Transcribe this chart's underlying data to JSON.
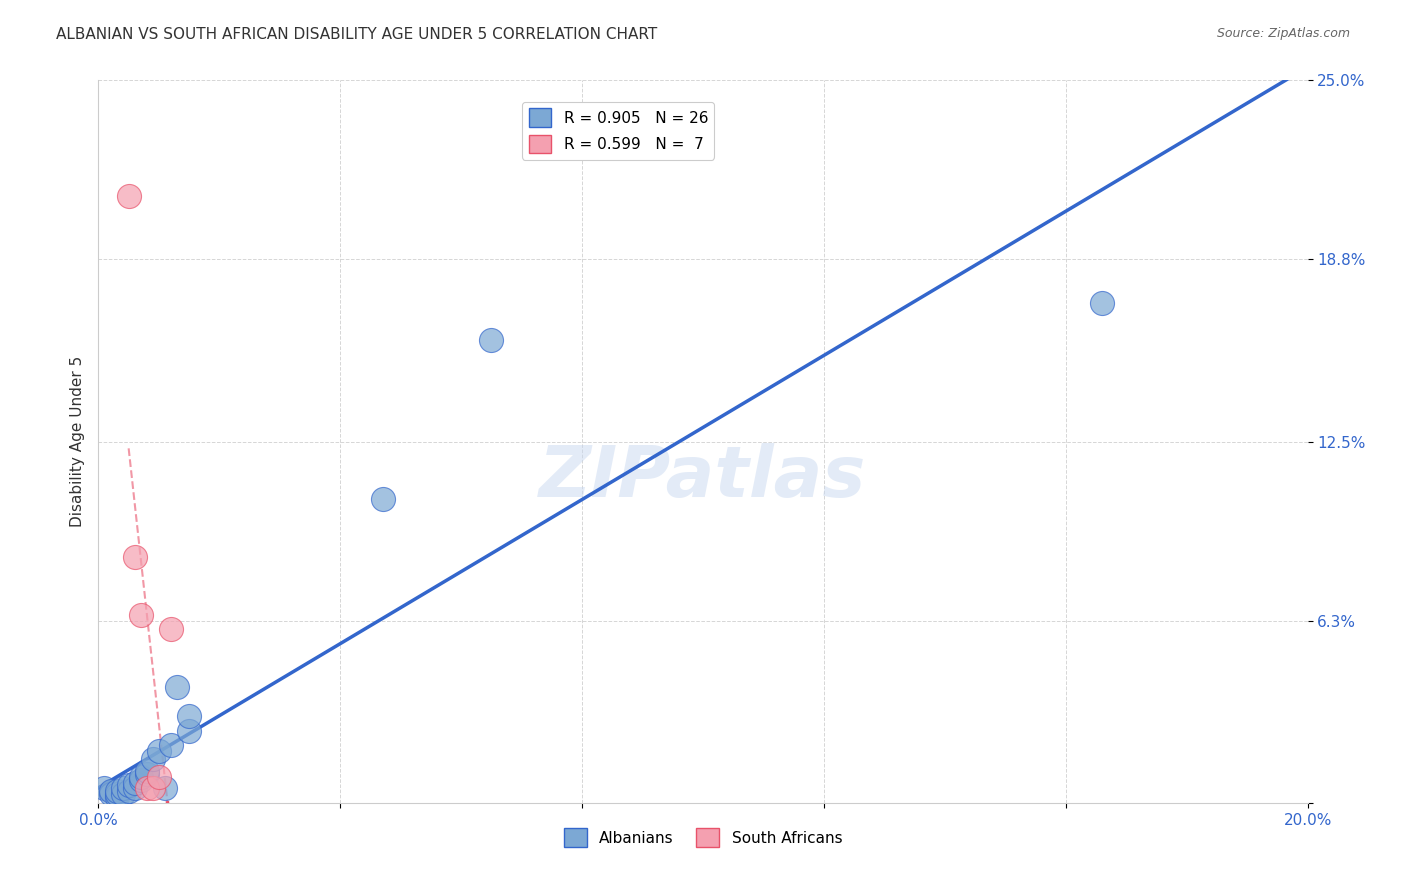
{
  "title": "ALBANIAN VS SOUTH AFRICAN DISABILITY AGE UNDER 5 CORRELATION CHART",
  "source": "Source: ZipAtlas.com",
  "ylabel": "Disability Age Under 5",
  "xlabel": "",
  "xlim": [
    0.0,
    0.2
  ],
  "ylim": [
    0.0,
    0.25
  ],
  "xticks": [
    0.0,
    0.04,
    0.08,
    0.12,
    0.16,
    0.2
  ],
  "xticklabels": [
    "0.0%",
    "",
    "",
    "",
    "",
    "20.0%"
  ],
  "ytick_positions": [
    0.0,
    0.063,
    0.125,
    0.188,
    0.25
  ],
  "ytick_labels": [
    "",
    "6.3%",
    "12.5%",
    "18.8%",
    "25.0%"
  ],
  "albanians_x": [
    0.001,
    0.002,
    0.002,
    0.003,
    0.003,
    0.003,
    0.004,
    0.004,
    0.005,
    0.005,
    0.006,
    0.006,
    0.007,
    0.007,
    0.008,
    0.008,
    0.009,
    0.01,
    0.011,
    0.012,
    0.013,
    0.015,
    0.015,
    0.047,
    0.065,
    0.166
  ],
  "albanians_y": [
    0.005,
    0.003,
    0.004,
    0.002,
    0.003,
    0.004,
    0.003,
    0.005,
    0.004,
    0.006,
    0.005,
    0.007,
    0.008,
    0.009,
    0.01,
    0.011,
    0.015,
    0.018,
    0.005,
    0.02,
    0.04,
    0.025,
    0.03,
    0.105,
    0.16,
    0.173
  ],
  "south_africans_x": [
    0.005,
    0.006,
    0.007,
    0.008,
    0.009,
    0.01,
    0.012
  ],
  "south_africans_y": [
    0.21,
    0.085,
    0.065,
    0.005,
    0.005,
    0.009,
    0.06
  ],
  "albanian_R": 0.905,
  "albanian_N": 26,
  "sa_R": 0.599,
  "sa_N": 7,
  "blue_color": "#7ca8d4",
  "blue_line_color": "#3366cc",
  "pink_color": "#f4a0b0",
  "pink_line_color": "#e8526a",
  "watermark": "ZIPatlas",
  "legend_R_blue": "R = 0.905",
  "legend_N_blue": "N = 26",
  "legend_R_pink": "R = 0.599",
  "legend_N_pink": "N =  7",
  "grid_color": "#cccccc",
  "background_color": "#ffffff",
  "title_fontsize": 11,
  "axis_label_fontsize": 10,
  "tick_fontsize": 9,
  "legend_fontsize": 11
}
